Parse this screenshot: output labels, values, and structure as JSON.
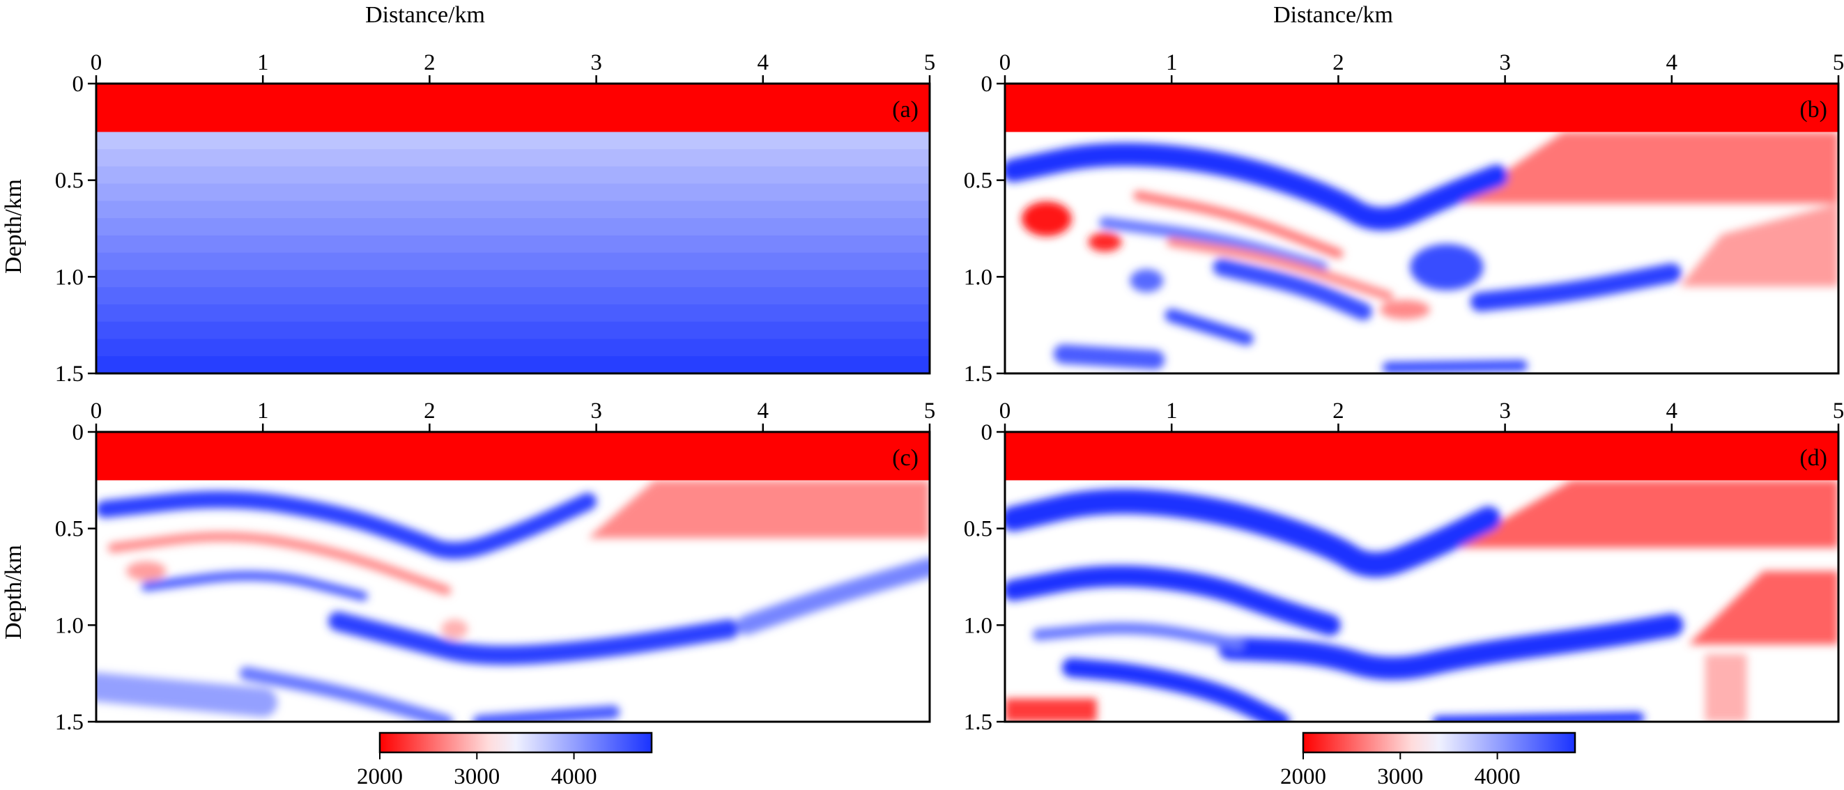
{
  "figure": {
    "x_axis_title": "Distance/km",
    "y_axis_title": "Depth/km",
    "x_ticks": [
      "0",
      "1",
      "2",
      "3",
      "4",
      "5"
    ],
    "y_ticks": [
      "0",
      "0.5",
      "1.0",
      "1.5"
    ],
    "colorbar_ticks": [
      "2000",
      "3000",
      "4000"
    ]
  },
  "colors": {
    "low": "#ff0000",
    "mid": "#ffffff",
    "high": "#1a33ff",
    "frame": "#000000"
  },
  "chart_data": [
    {
      "type": "heatmap",
      "panel": "a",
      "label": "(a)",
      "xlim": [
        0,
        5
      ],
      "ylim": [
        0,
        1.5
      ],
      "y_inverted": true,
      "color_range": [
        2000,
        4800
      ],
      "layers": [
        {
          "depth_top": 0.0,
          "depth_bottom": 0.25,
          "value": 2000
        },
        {
          "depth_top": 0.25,
          "depth_bottom": 1.5,
          "value_top": 3700,
          "value_bottom": 4750
        }
      ],
      "bands": [],
      "wedges": [],
      "blobs": []
    },
    {
      "type": "heatmap",
      "panel": "b",
      "label": "(b)",
      "xlim": [
        0,
        5
      ],
      "ylim": [
        0,
        1.5
      ],
      "y_inverted": true,
      "color_range": [
        2000,
        4800
      ],
      "layers": [
        {
          "depth_top": 0.0,
          "depth_bottom": 0.25,
          "value": 2000
        }
      ],
      "wedges": [
        {
          "value": 2600,
          "points": [
            [
              3.35,
              0.25
            ],
            [
              5.0,
              0.25
            ],
            [
              5.0,
              0.62
            ],
            [
              2.72,
              0.62
            ]
          ]
        },
        {
          "value": 2800,
          "points": [
            [
              4.3,
              0.78
            ],
            [
              5.0,
              0.62
            ],
            [
              5.0,
              1.05
            ],
            [
              4.05,
              1.05
            ]
          ]
        }
      ],
      "bands": [
        {
          "value": 4800,
          "width": 0.12,
          "points": [
            [
              0.05,
              0.45
            ],
            [
              0.6,
              0.35
            ],
            [
              1.3,
              0.4
            ],
            [
              1.95,
              0.58
            ],
            [
              2.25,
              0.74
            ],
            [
              2.65,
              0.58
            ],
            [
              2.95,
              0.48
            ]
          ]
        },
        {
          "value": 4600,
          "width": 0.09,
          "points": [
            [
              1.3,
              0.95
            ],
            [
              1.8,
              1.05
            ],
            [
              2.15,
              1.18
            ]
          ]
        },
        {
          "value": 4600,
          "width": 0.07,
          "points": [
            [
              1.0,
              1.2
            ],
            [
              1.45,
              1.32
            ]
          ]
        },
        {
          "value": 4700,
          "width": 0.1,
          "points": [
            [
              2.85,
              1.13
            ],
            [
              3.4,
              1.08
            ],
            [
              4.0,
              0.98
            ]
          ]
        },
        {
          "value": 4500,
          "width": 0.1,
          "points": [
            [
              0.35,
              1.4
            ],
            [
              0.9,
              1.43
            ]
          ]
        },
        {
          "value": 4600,
          "width": 0.06,
          "points": [
            [
              2.3,
              1.47
            ],
            [
              3.1,
              1.46
            ]
          ]
        },
        {
          "value": 4300,
          "width": 0.06,
          "points": [
            [
              0.6,
              0.72
            ],
            [
              1.3,
              0.8
            ],
            [
              1.9,
              0.95
            ]
          ]
        },
        {
          "value": 2600,
          "width": 0.05,
          "points": [
            [
              0.8,
              0.58
            ],
            [
              1.4,
              0.68
            ],
            [
              2.0,
              0.88
            ]
          ]
        },
        {
          "value": 2700,
          "width": 0.05,
          "points": [
            [
              1.0,
              0.82
            ],
            [
              1.6,
              0.9
            ],
            [
              2.3,
              1.1
            ]
          ]
        }
      ],
      "blobs": [
        {
          "x": 0.25,
          "y": 0.7,
          "rx": 0.15,
          "ry": 0.09,
          "value": 2100
        },
        {
          "x": 0.6,
          "y": 0.82,
          "rx": 0.1,
          "ry": 0.05,
          "value": 2200
        },
        {
          "x": 2.65,
          "y": 0.95,
          "rx": 0.22,
          "ry": 0.12,
          "value": 4600
        },
        {
          "x": 2.4,
          "y": 1.17,
          "rx": 0.15,
          "ry": 0.05,
          "value": 2700
        },
        {
          "x": 0.85,
          "y": 1.02,
          "rx": 0.1,
          "ry": 0.06,
          "value": 4400
        }
      ]
    },
    {
      "type": "heatmap",
      "panel": "c",
      "label": "(c)",
      "xlim": [
        0,
        5
      ],
      "ylim": [
        0,
        1.5
      ],
      "y_inverted": true,
      "color_range": [
        2000,
        4800
      ],
      "layers": [
        {
          "depth_top": 0.0,
          "depth_bottom": 0.25,
          "value": 2000
        }
      ],
      "wedges": [
        {
          "value": 2700,
          "points": [
            [
              3.35,
              0.25
            ],
            [
              5.0,
              0.25
            ],
            [
              5.0,
              0.55
            ],
            [
              2.95,
              0.55
            ]
          ]
        }
      ],
      "bands": [
        {
          "value": 4700,
          "width": 0.09,
          "points": [
            [
              0.05,
              0.4
            ],
            [
              0.8,
              0.33
            ],
            [
              1.45,
              0.42
            ],
            [
              1.9,
              0.55
            ],
            [
              2.15,
              0.64
            ],
            [
              2.55,
              0.52
            ],
            [
              2.95,
              0.36
            ]
          ]
        },
        {
          "value": 2700,
          "width": 0.05,
          "points": [
            [
              0.1,
              0.6
            ],
            [
              0.8,
              0.52
            ],
            [
              1.45,
              0.62
            ],
            [
              2.1,
              0.82
            ]
          ]
        },
        {
          "value": 4500,
          "width": 0.05,
          "points": [
            [
              0.3,
              0.8
            ],
            [
              1.0,
              0.72
            ],
            [
              1.6,
              0.85
            ]
          ]
        },
        {
          "value": 4700,
          "width": 0.1,
          "points": [
            [
              1.45,
              0.98
            ],
            [
              1.9,
              1.08
            ],
            [
              2.3,
              1.17
            ],
            [
              3.0,
              1.13
            ],
            [
              3.8,
              1.02
            ]
          ]
        },
        {
          "value": 4300,
          "width": 0.07,
          "points": [
            [
              0.9,
              1.25
            ],
            [
              1.5,
              1.35
            ],
            [
              2.1,
              1.5
            ]
          ]
        },
        {
          "value": 4500,
          "width": 0.07,
          "points": [
            [
              2.3,
              1.5
            ],
            [
              3.1,
              1.45
            ]
          ]
        },
        {
          "value": 4200,
          "width": 0.1,
          "points": [
            [
              3.9,
              1.0
            ],
            [
              4.4,
              0.85
            ],
            [
              5.0,
              0.7
            ]
          ]
        },
        {
          "value": 4000,
          "width": 0.15,
          "points": [
            [
              0.0,
              1.32
            ],
            [
              1.0,
              1.4
            ]
          ]
        }
      ],
      "blobs": [
        {
          "x": 2.15,
          "y": 1.02,
          "rx": 0.08,
          "ry": 0.05,
          "value": 2900
        },
        {
          "x": 0.3,
          "y": 0.72,
          "rx": 0.12,
          "ry": 0.05,
          "value": 2800
        }
      ]
    },
    {
      "type": "heatmap",
      "panel": "d",
      "label": "(d)",
      "xlim": [
        0,
        5
      ],
      "ylim": [
        0,
        1.5
      ],
      "y_inverted": true,
      "color_range": [
        2000,
        4800
      ],
      "layers": [
        {
          "depth_top": 0.0,
          "depth_bottom": 0.25,
          "value": 2000
        }
      ],
      "wedges": [
        {
          "value": 2500,
          "points": [
            [
              3.4,
              0.25
            ],
            [
              5.0,
              0.25
            ],
            [
              5.0,
              0.6
            ],
            [
              2.7,
              0.6
            ]
          ]
        },
        {
          "value": 2500,
          "points": [
            [
              4.55,
              0.72
            ],
            [
              5.0,
              0.72
            ],
            [
              5.0,
              1.1
            ],
            [
              4.1,
              1.1
            ]
          ]
        },
        {
          "value": 2900,
          "points": [
            [
              4.2,
              1.15
            ],
            [
              4.45,
              1.15
            ],
            [
              4.45,
              1.5
            ],
            [
              4.2,
              1.5
            ]
          ]
        },
        {
          "value": 2300,
          "points": [
            [
              0.0,
              1.38
            ],
            [
              0.55,
              1.38
            ],
            [
              0.55,
              1.5
            ],
            [
              0.0,
              1.5
            ]
          ]
        }
      ],
      "bands": [
        {
          "value": 4800,
          "width": 0.13,
          "points": [
            [
              0.05,
              0.45
            ],
            [
              0.6,
              0.34
            ],
            [
              1.3,
              0.4
            ],
            [
              1.95,
              0.58
            ],
            [
              2.2,
              0.72
            ],
            [
              2.55,
              0.6
            ],
            [
              2.9,
              0.45
            ]
          ]
        },
        {
          "value": 4800,
          "width": 0.11,
          "points": [
            [
              0.05,
              0.82
            ],
            [
              0.6,
              0.73
            ],
            [
              1.2,
              0.78
            ],
            [
              1.65,
              0.92
            ],
            [
              1.95,
              1.0
            ]
          ]
        },
        {
          "value": 4800,
          "width": 0.12,
          "points": [
            [
              1.35,
              1.12
            ],
            [
              1.9,
              1.14
            ],
            [
              2.3,
              1.25
            ],
            [
              2.8,
              1.15
            ],
            [
              3.6,
              1.06
            ],
            [
              4.0,
              1.0
            ]
          ]
        },
        {
          "value": 4800,
          "width": 0.1,
          "points": [
            [
              0.4,
              1.22
            ],
            [
              0.8,
              1.25
            ],
            [
              1.3,
              1.35
            ],
            [
              1.65,
              1.5
            ]
          ]
        },
        {
          "value": 4800,
          "width": 0.06,
          "points": [
            [
              2.6,
              1.5
            ],
            [
              3.8,
              1.48
            ]
          ]
        },
        {
          "value": 4300,
          "width": 0.06,
          "points": [
            [
              0.2,
              1.05
            ],
            [
              0.8,
              1.0
            ],
            [
              1.4,
              1.1
            ]
          ]
        }
      ],
      "blobs": []
    }
  ]
}
